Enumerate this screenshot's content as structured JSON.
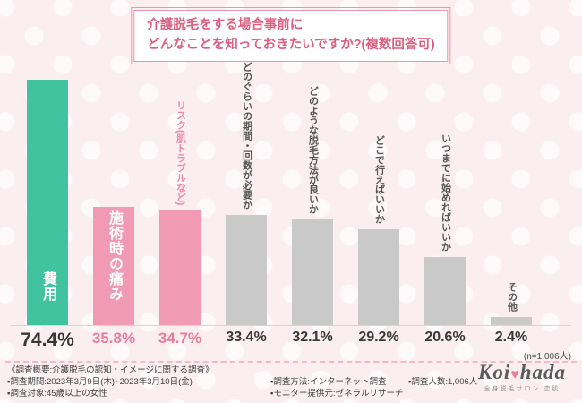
{
  "title": {
    "line1": "介護脱毛をする場合事前に",
    "line2": "どんなことを知っておきたいですか?(複数回答可)"
  },
  "chart_data": {
    "type": "bar",
    "title": "介護脱毛をする場合事前にどんなことを知っておきたいですか?(複数回答可)",
    "categories": [
      "費用",
      "施術時の痛み",
      "リスク(肌トラブルなど)",
      "どのぐらいの期間・回数が必要か",
      "どのような脱毛方法が良いか",
      "どこで行えばいいか",
      "いつまでに始めればいいか",
      "その他"
    ],
    "values": [
      74.4,
      35.8,
      34.7,
      33.4,
      32.1,
      29.2,
      20.6,
      2.4
    ],
    "value_labels": [
      "74.4%",
      "35.8%",
      "34.7%",
      "33.4%",
      "32.1%",
      "29.2%",
      "20.6%",
      "2.4%"
    ],
    "ylim": [
      0,
      80
    ],
    "n_label": "(n=1,006人)",
    "bar_colors": [
      "#41c3a0",
      "#f19ab5",
      "#f19ab5",
      "#c9c9c9",
      "#c9c9c9",
      "#c9c9c9",
      "#c9c9c9",
      "#c9c9c9"
    ],
    "category_label_position": [
      "inside",
      "inside",
      "above",
      "above",
      "above",
      "above",
      "above",
      "above"
    ],
    "category_label_colors": [
      "#ffffff",
      "#ffffff",
      "#ee86a8",
      "#565656",
      "#565656",
      "#565656",
      "#565656",
      "#565656"
    ],
    "value_label_colors": [
      "#383838",
      "#e87d99",
      "#e87d99",
      "#383838",
      "#383838",
      "#383838",
      "#383838",
      "#383838"
    ],
    "value_label_sizes": [
      21,
      17,
      17,
      16,
      16,
      16,
      16,
      16
    ],
    "legend": "none",
    "grid": "off"
  },
  "footer": {
    "heading": "《調査概要:介護脱毛の認知・イメージに関する調査》",
    "col1": [
      "▪調査期間:2023年3月9日(木)~2023年3月10日(金)",
      "▪調査対象:45歳以上の女性"
    ],
    "col2": [
      "▪調査方法:インターネット調査",
      "▪モニター提供元:ゼネラルリサーチ"
    ],
    "col3": [
      "▪調査人数:1,006人"
    ]
  },
  "logo": {
    "left": "Koi",
    "heart": "♥",
    "right": "hada",
    "subtext": "全身脱毛サロン 恋肌"
  }
}
